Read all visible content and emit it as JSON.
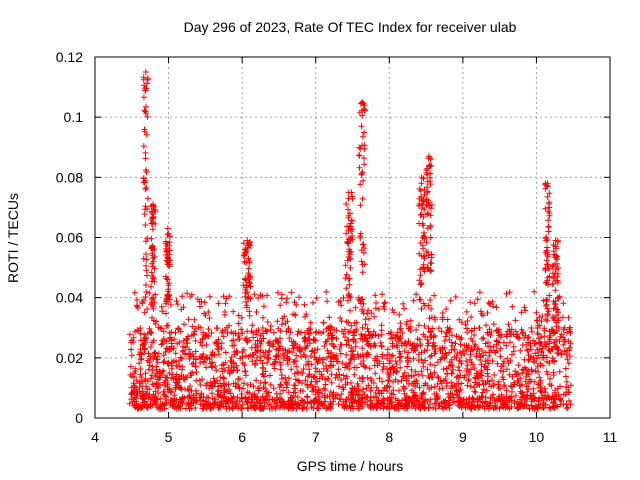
{
  "chart_data": {
    "type": "scatter",
    "title": "Day 296 of 2023, Rate Of TEC Index for receiver ulab",
    "xlabel": "GPS time / hours",
    "ylabel": "ROTI / TECUs",
    "xlim": [
      4,
      11
    ],
    "ylim": [
      0,
      0.12
    ],
    "x_ticks": [
      4,
      5,
      6,
      7,
      8,
      9,
      10,
      11
    ],
    "x_tick_labels": [
      "4",
      "5",
      "6",
      "7",
      "8",
      "9",
      "10",
      "11"
    ],
    "y_ticks": [
      0,
      0.02,
      0.04,
      0.06,
      0.08,
      0.1,
      0.12
    ],
    "y_tick_labels": [
      "0",
      "0.02",
      "0.04",
      "0.06",
      "0.08",
      "0.1",
      "0.12"
    ],
    "grid": true,
    "marker": "+",
    "color": "#ff0000",
    "series": [
      {
        "name": "ROTI",
        "x_range": [
          4.47,
          10.47
        ],
        "baseline_range": [
          0.003,
          0.03
        ],
        "peaks": [
          {
            "x": [
              4.66,
              4.72
            ],
            "y_max": 0.115,
            "note": "spike"
          },
          {
            "x": [
              4.76,
              4.82
            ],
            "y_max": 0.071
          },
          {
            "x": [
              4.96,
              5.02
            ],
            "y_max": 0.063
          },
          {
            "x": [
              6.02,
              6.12
            ],
            "y_max": 0.059
          },
          {
            "x": [
              7.4,
              7.5
            ],
            "y_max": 0.075
          },
          {
            "x": [
              7.58,
              7.68
            ],
            "y_max": 0.105,
            "note": "spike"
          },
          {
            "x": [
              8.4,
              8.48
            ],
            "y_max": 0.08
          },
          {
            "x": [
              8.5,
              8.58
            ],
            "y_max": 0.087
          },
          {
            "x": [
              10.12,
              10.18
            ],
            "y_max": 0.078
          },
          {
            "x": [
              10.22,
              10.3
            ],
            "y_max": 0.059
          }
        ]
      }
    ]
  }
}
